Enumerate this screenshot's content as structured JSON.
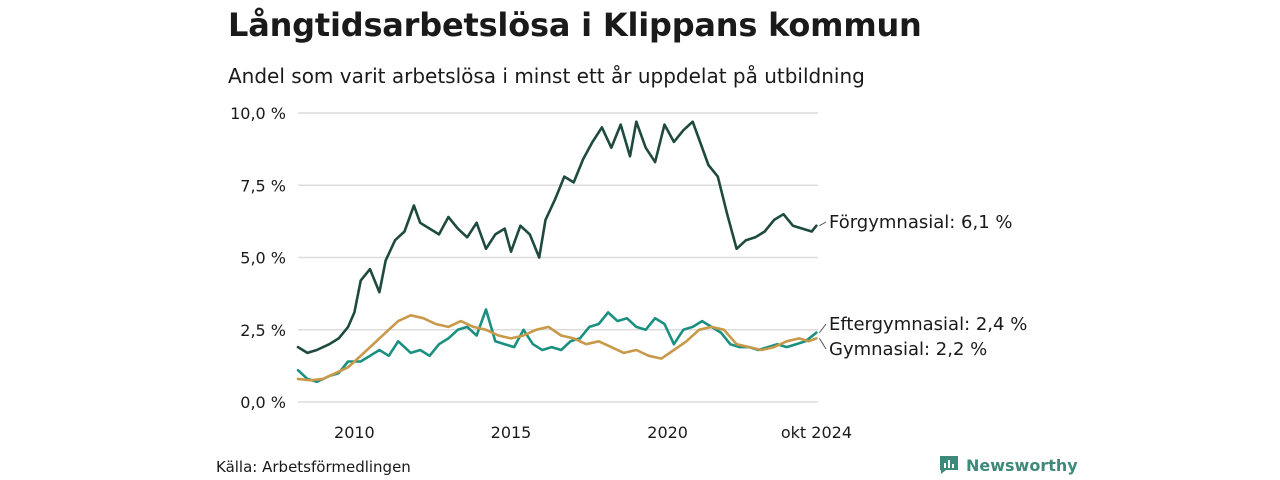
{
  "header": {
    "title": "Långtidsarbetslösa i Klippans kommun",
    "subtitle": "Andel som varit arbetslösa i minst ett år uppdelat på utbildning"
  },
  "footer": {
    "source": "Källa: Arbetsförmedlingen",
    "brand": "Newsworthy"
  },
  "colors": {
    "forgymnasial": "#1e4a3f",
    "eftergymnasial": "#1a9080",
    "gymnasial": "#c9994a",
    "grid": "#dcdcdc",
    "brand": "#3d8a7a"
  },
  "chart_data": {
    "type": "line",
    "title": "Långtidsarbetslösa i Klippans kommun",
    "subtitle": "Andel som varit arbetslösa i minst ett år uppdelat på utbildning",
    "xlabel": "",
    "ylabel": "",
    "xlim": [
      2008.2,
      2024.8
    ],
    "ylim": [
      0,
      10
    ],
    "grid": true,
    "legend": "end-labels",
    "y_ticks": [
      {
        "value": 0,
        "label": "0,0 %"
      },
      {
        "value": 2.5,
        "label": "2,5 %"
      },
      {
        "value": 5,
        "label": "5,0 %"
      },
      {
        "value": 7.5,
        "label": "7,5 %"
      },
      {
        "value": 10,
        "label": "10,0 %"
      }
    ],
    "x_ticks": [
      {
        "value": 2010,
        "label": "2010"
      },
      {
        "value": 2015,
        "label": "2015"
      },
      {
        "value": 2020,
        "label": "2020"
      },
      {
        "value": 2024.75,
        "label": "okt 2024"
      }
    ],
    "series": [
      {
        "name": "Förgymnasial",
        "end_label": "Förgymnasial: 6,1 %",
        "color": "#1e4a3f",
        "x": [
          2008.2,
          2008.5,
          2008.8,
          2009.2,
          2009.5,
          2009.8,
          2010.0,
          2010.2,
          2010.5,
          2010.8,
          2011.0,
          2011.3,
          2011.6,
          2011.9,
          2012.1,
          2012.4,
          2012.7,
          2013.0,
          2013.3,
          2013.6,
          2013.9,
          2014.2,
          2014.5,
          2014.8,
          2015.0,
          2015.3,
          2015.6,
          2015.9,
          2016.1,
          2016.4,
          2016.7,
          2017.0,
          2017.3,
          2017.6,
          2017.9,
          2018.2,
          2018.5,
          2018.8,
          2019.0,
          2019.3,
          2019.6,
          2019.9,
          2020.2,
          2020.5,
          2020.8,
          2021.0,
          2021.3,
          2021.6,
          2021.9,
          2022.2,
          2022.5,
          2022.8,
          2023.1,
          2023.4,
          2023.7,
          2024.0,
          2024.3,
          2024.6,
          2024.75
        ],
        "y": [
          1.9,
          1.7,
          1.8,
          2.0,
          2.2,
          2.6,
          3.1,
          4.2,
          4.6,
          3.8,
          4.9,
          5.6,
          5.9,
          6.8,
          6.2,
          6.0,
          5.8,
          6.4,
          6.0,
          5.7,
          6.2,
          5.3,
          5.8,
          6.0,
          5.2,
          6.1,
          5.8,
          5.0,
          6.3,
          7.0,
          7.8,
          7.6,
          8.4,
          9.0,
          9.5,
          8.8,
          9.6,
          8.5,
          9.7,
          8.8,
          8.3,
          9.6,
          9.0,
          9.4,
          9.7,
          9.1,
          8.2,
          7.8,
          6.5,
          5.3,
          5.6,
          5.7,
          5.9,
          6.3,
          6.5,
          6.1,
          6.0,
          5.9,
          6.1
        ]
      },
      {
        "name": "Eftergymnasial",
        "end_label": "Eftergymnasial: 2,4 %",
        "color": "#1a9080",
        "x": [
          2008.2,
          2008.5,
          2008.8,
          2009.2,
          2009.5,
          2009.8,
          2010.2,
          2010.5,
          2010.8,
          2011.1,
          2011.4,
          2011.8,
          2012.1,
          2012.4,
          2012.7,
          2013.0,
          2013.3,
          2013.6,
          2013.9,
          2014.2,
          2014.5,
          2014.8,
          2015.1,
          2015.4,
          2015.7,
          2016.0,
          2016.3,
          2016.6,
          2016.9,
          2017.2,
          2017.5,
          2017.8,
          2018.1,
          2018.4,
          2018.7,
          2019.0,
          2019.3,
          2019.6,
          2019.9,
          2020.2,
          2020.5,
          2020.8,
          2021.1,
          2021.4,
          2021.7,
          2022.0,
          2022.3,
          2022.6,
          2022.9,
          2023.2,
          2023.5,
          2023.8,
          2024.1,
          2024.4,
          2024.75
        ],
        "y": [
          1.1,
          0.8,
          0.7,
          0.9,
          1.0,
          1.4,
          1.4,
          1.6,
          1.8,
          1.6,
          2.1,
          1.7,
          1.8,
          1.6,
          2.0,
          2.2,
          2.5,
          2.6,
          2.3,
          3.2,
          2.1,
          2.0,
          1.9,
          2.5,
          2.0,
          1.8,
          1.9,
          1.8,
          2.1,
          2.2,
          2.6,
          2.7,
          3.1,
          2.8,
          2.9,
          2.6,
          2.5,
          2.9,
          2.7,
          2.0,
          2.5,
          2.6,
          2.8,
          2.6,
          2.4,
          2.0,
          1.9,
          1.9,
          1.8,
          1.9,
          2.0,
          1.9,
          2.0,
          2.1,
          2.4
        ]
      },
      {
        "name": "Gymnasial",
        "end_label": "Gymnasial: 2,2 %",
        "color": "#c9994a",
        "x": [
          2008.2,
          2008.6,
          2009.0,
          2009.4,
          2009.8,
          2010.2,
          2010.6,
          2011.0,
          2011.4,
          2011.8,
          2012.2,
          2012.6,
          2013.0,
          2013.4,
          2013.8,
          2014.2,
          2014.6,
          2015.0,
          2015.4,
          2015.8,
          2016.2,
          2016.6,
          2017.0,
          2017.4,
          2017.8,
          2018.2,
          2018.6,
          2019.0,
          2019.4,
          2019.8,
          2020.2,
          2020.6,
          2021.0,
          2021.4,
          2021.8,
          2022.2,
          2022.6,
          2023.0,
          2023.4,
          2023.8,
          2024.2,
          2024.5,
          2024.75
        ],
        "y": [
          0.8,
          0.75,
          0.8,
          1.0,
          1.2,
          1.6,
          2.0,
          2.4,
          2.8,
          3.0,
          2.9,
          2.7,
          2.6,
          2.8,
          2.6,
          2.5,
          2.3,
          2.2,
          2.3,
          2.5,
          2.6,
          2.3,
          2.2,
          2.0,
          2.1,
          1.9,
          1.7,
          1.8,
          1.6,
          1.5,
          1.8,
          2.1,
          2.5,
          2.6,
          2.5,
          2.0,
          1.9,
          1.8,
          1.9,
          2.1,
          2.2,
          2.1,
          2.2
        ]
      }
    ]
  }
}
